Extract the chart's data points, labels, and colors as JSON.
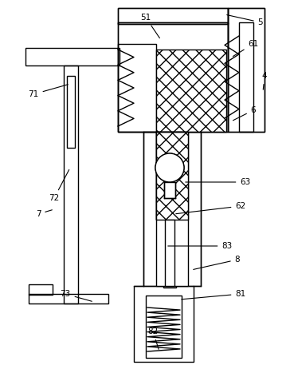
{
  "bg_color": "#ffffff",
  "line_color": "#000000",
  "figsize": [
    3.64,
    4.67
  ],
  "dpi": 100,
  "labels_data": [
    [
      "51",
      183,
      22,
      202,
      50
    ],
    [
      "5",
      327,
      28,
      282,
      18
    ],
    [
      "61",
      318,
      55,
      290,
      72
    ],
    [
      "4",
      332,
      95,
      330,
      115
    ],
    [
      "6",
      318,
      138,
      290,
      152
    ],
    [
      "71",
      42,
      118,
      88,
      105
    ],
    [
      "72",
      68,
      248,
      88,
      210
    ],
    [
      "7",
      48,
      268,
      68,
      262
    ],
    [
      "73",
      82,
      368,
      118,
      378
    ],
    [
      "63",
      308,
      228,
      230,
      228
    ],
    [
      "62",
      302,
      258,
      218,
      268
    ],
    [
      "83",
      285,
      308,
      208,
      308
    ],
    [
      "8",
      298,
      325,
      240,
      338
    ],
    [
      "81",
      302,
      368,
      225,
      375
    ],
    [
      "82",
      192,
      415,
      200,
      440
    ]
  ]
}
